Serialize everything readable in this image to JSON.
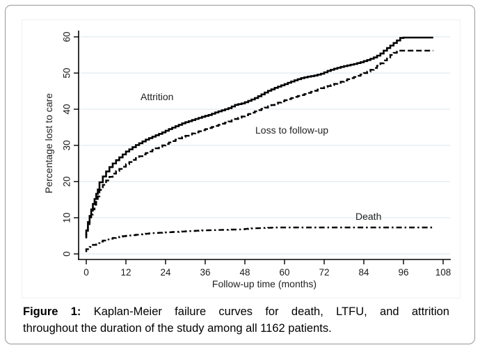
{
  "chart_data": {
    "type": "line",
    "subtype": "kaplan-meier-step",
    "title": "",
    "xlabel": "Follow-up time (months)",
    "ylabel": "Percentage lost to care",
    "xlim": [
      0,
      108
    ],
    "ylim": [
      0,
      60
    ],
    "xticks": [
      0,
      12,
      24,
      36,
      48,
      60,
      72,
      84,
      96,
      108
    ],
    "yticks": [
      0,
      10,
      20,
      30,
      40,
      50,
      60
    ],
    "grid": "horizontal",
    "grid_color": "#e2ebf1",
    "curve_color": "#000000",
    "legend_position": "inline-annotations",
    "series": [
      {
        "id": "attrition",
        "name": "Attrition",
        "line_style": "solid",
        "width": 2.6,
        "points": [
          [
            0,
            4.6
          ],
          [
            0.5,
            6.5
          ],
          [
            1,
            8.8
          ],
          [
            1.5,
            10.5
          ],
          [
            2,
            12.3
          ],
          [
            2.5,
            13.8
          ],
          [
            3,
            15.2
          ],
          [
            3.5,
            16.6
          ],
          [
            4,
            17.8
          ],
          [
            5,
            19.8
          ],
          [
            6,
            21.4
          ],
          [
            7,
            22.8
          ],
          [
            8,
            24.0
          ],
          [
            9,
            25.0
          ],
          [
            10,
            25.9
          ],
          [
            11,
            26.7
          ],
          [
            12,
            27.5
          ],
          [
            13,
            28.3
          ],
          [
            14,
            28.9
          ],
          [
            15,
            29.5
          ],
          [
            16,
            30.1
          ],
          [
            17,
            30.6
          ],
          [
            18,
            31.1
          ],
          [
            19,
            31.6
          ],
          [
            20,
            32.0
          ],
          [
            22,
            32.8
          ],
          [
            24,
            33.6
          ],
          [
            26,
            34.5
          ],
          [
            28,
            35.3
          ],
          [
            30,
            36.1
          ],
          [
            32,
            36.7
          ],
          [
            34,
            37.3
          ],
          [
            36,
            37.9
          ],
          [
            38,
            38.4
          ],
          [
            40,
            39.1
          ],
          [
            42,
            39.7
          ],
          [
            44,
            40.3
          ],
          [
            46,
            41.2
          ],
          [
            48,
            41.6
          ],
          [
            50,
            42.3
          ],
          [
            52,
            43.1
          ],
          [
            54,
            44.1
          ],
          [
            56,
            45.1
          ],
          [
            58,
            45.9
          ],
          [
            60,
            46.6
          ],
          [
            62,
            47.3
          ],
          [
            64,
            48.0
          ],
          [
            66,
            48.6
          ],
          [
            68,
            49.0
          ],
          [
            70,
            49.3
          ],
          [
            72,
            49.8
          ],
          [
            74,
            50.6
          ],
          [
            76,
            51.2
          ],
          [
            78,
            51.7
          ],
          [
            80,
            52.1
          ],
          [
            82,
            52.5
          ],
          [
            84,
            53.0
          ],
          [
            86,
            53.6
          ],
          [
            88,
            54.3
          ],
          [
            89,
            54.8
          ],
          [
            90,
            55.4
          ],
          [
            91,
            56.2
          ],
          [
            92,
            56.9
          ],
          [
            93,
            57.6
          ],
          [
            94,
            58.3
          ],
          [
            95,
            59.0
          ],
          [
            96,
            59.7
          ],
          [
            97,
            59.8
          ],
          [
            105,
            59.8
          ]
        ]
      },
      {
        "id": "ltfu",
        "name": "Loss to follow-up",
        "line_style": "dashed",
        "width": 2.4,
        "points": [
          [
            0,
            4.3
          ],
          [
            0.5,
            5.8
          ],
          [
            1,
            7.6
          ],
          [
            1.5,
            9.3
          ],
          [
            2,
            10.9
          ],
          [
            2.5,
            12.3
          ],
          [
            3,
            13.6
          ],
          [
            3.5,
            14.8
          ],
          [
            4,
            15.9
          ],
          [
            5,
            17.7
          ],
          [
            6,
            19.1
          ],
          [
            7,
            20.3
          ],
          [
            8,
            21.3
          ],
          [
            9,
            22.2
          ],
          [
            10,
            22.9
          ],
          [
            11,
            23.5
          ],
          [
            12,
            24.1
          ],
          [
            13,
            24.8
          ],
          [
            14,
            25.4
          ],
          [
            15,
            26.0
          ],
          [
            16,
            26.5
          ],
          [
            17,
            27.0
          ],
          [
            18,
            27.5
          ],
          [
            19,
            27.9
          ],
          [
            20,
            28.3
          ],
          [
            22,
            29.2
          ],
          [
            24,
            30.0
          ],
          [
            26,
            30.8
          ],
          [
            28,
            31.6
          ],
          [
            30,
            32.3
          ],
          [
            32,
            33.0
          ],
          [
            34,
            33.6
          ],
          [
            36,
            34.2
          ],
          [
            38,
            34.8
          ],
          [
            40,
            35.4
          ],
          [
            42,
            36.0
          ],
          [
            44,
            36.6
          ],
          [
            46,
            37.3
          ],
          [
            48,
            38.0
          ],
          [
            50,
            38.7
          ],
          [
            52,
            39.4
          ],
          [
            54,
            40.1
          ],
          [
            56,
            40.8
          ],
          [
            58,
            41.5
          ],
          [
            60,
            42.2
          ],
          [
            62,
            42.8
          ],
          [
            64,
            43.4
          ],
          [
            66,
            43.9
          ],
          [
            68,
            44.5
          ],
          [
            70,
            45.1
          ],
          [
            72,
            45.8
          ],
          [
            74,
            46.4
          ],
          [
            76,
            47.0
          ],
          [
            78,
            47.6
          ],
          [
            80,
            48.3
          ],
          [
            82,
            48.9
          ],
          [
            84,
            49.6
          ],
          [
            86,
            50.4
          ],
          [
            88,
            51.4
          ],
          [
            89,
            52.0
          ],
          [
            90,
            52.7
          ],
          [
            91,
            53.5
          ],
          [
            92,
            54.3
          ],
          [
            93,
            55.0
          ],
          [
            94,
            55.6
          ],
          [
            95,
            56.2
          ],
          [
            105,
            56.2
          ]
        ]
      },
      {
        "id": "death",
        "name": "Death",
        "line_style": "dash-dot",
        "width": 2.4,
        "points": [
          [
            0,
            0.5
          ],
          [
            1,
            1.3
          ],
          [
            2,
            1.9
          ],
          [
            3,
            2.5
          ],
          [
            4,
            3.0
          ],
          [
            5,
            3.4
          ],
          [
            6,
            3.7
          ],
          [
            7,
            4.0
          ],
          [
            8,
            4.2
          ],
          [
            9,
            4.4
          ],
          [
            10,
            4.6
          ],
          [
            12,
            4.9
          ],
          [
            14,
            5.1
          ],
          [
            16,
            5.3
          ],
          [
            18,
            5.5
          ],
          [
            20,
            5.7
          ],
          [
            22,
            5.8
          ],
          [
            24,
            5.9
          ],
          [
            26,
            6.0
          ],
          [
            28,
            6.1
          ],
          [
            30,
            6.2
          ],
          [
            32,
            6.3
          ],
          [
            34,
            6.4
          ],
          [
            36,
            6.5
          ],
          [
            40,
            6.6
          ],
          [
            44,
            6.7
          ],
          [
            48,
            6.8
          ],
          [
            50,
            7.0
          ],
          [
            52,
            7.1
          ],
          [
            55,
            7.2
          ],
          [
            58,
            7.3
          ],
          [
            70,
            7.3
          ],
          [
            85,
            7.3
          ],
          [
            105,
            7.3
          ]
        ]
      }
    ]
  },
  "caption": {
    "prefix": "Figure 1:",
    "line1": "Kaplan-Meier failure curves for death, LTFU, and attrition",
    "line2": "throughout the duration of the study among all 1162 patients."
  }
}
